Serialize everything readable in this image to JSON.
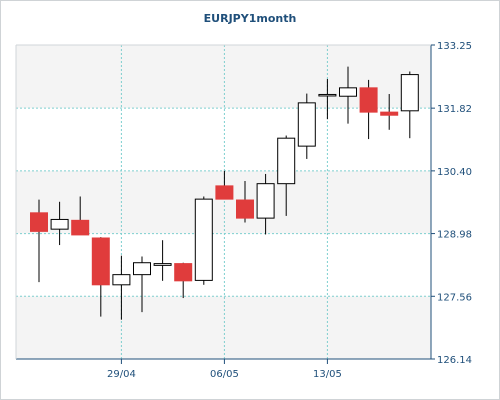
{
  "chart_data": {
    "type": "candlestick",
    "title": "EURJPY1month",
    "xlabel": "",
    "ylabel": "",
    "ylim": [
      126.14,
      133.25
    ],
    "y_ticks": [
      "126.14",
      "127.56",
      "128.98",
      "130.40",
      "131.82",
      "133.25"
    ],
    "x_ticks": [
      {
        "label": "29/04",
        "index": 4
      },
      {
        "label": "06/05",
        "index": 9
      },
      {
        "label": "13/05",
        "index": 14
      }
    ],
    "grid": true,
    "colors": {
      "up": "#ffffff",
      "down": "#e03c3c",
      "outline": "#000000",
      "grid": "#7ecfcf"
    },
    "series": [
      {
        "date": "23/04",
        "open": 129.45,
        "high": 129.75,
        "low": 127.88,
        "close": 129.03
      },
      {
        "date": "24/04",
        "open": 129.08,
        "high": 129.7,
        "low": 128.72,
        "close": 129.3
      },
      {
        "date": "25/04",
        "open": 129.28,
        "high": 129.82,
        "low": 128.98,
        "close": 128.95
      },
      {
        "date": "26/04",
        "open": 128.88,
        "high": 128.9,
        "low": 127.1,
        "close": 127.82
      },
      {
        "date": "29/04",
        "open": 127.82,
        "high": 128.48,
        "low": 127.03,
        "close": 128.05
      },
      {
        "date": "30/04",
        "open": 128.05,
        "high": 128.46,
        "low": 127.2,
        "close": 128.32
      },
      {
        "date": "01/05",
        "open": 128.26,
        "high": 128.83,
        "low": 127.91,
        "close": 128.3
      },
      {
        "date": "02/05",
        "open": 128.3,
        "high": 128.32,
        "low": 127.52,
        "close": 127.91
      },
      {
        "date": "03/05",
        "open": 127.92,
        "high": 129.82,
        "low": 127.82,
        "close": 129.76
      },
      {
        "date": "06/05",
        "open": 130.06,
        "high": 130.4,
        "low": 129.76,
        "close": 129.76
      },
      {
        "date": "07/05",
        "open": 129.74,
        "high": 130.17,
        "low": 129.23,
        "close": 129.33
      },
      {
        "date": "08/05",
        "open": 129.33,
        "high": 130.33,
        "low": 128.96,
        "close": 130.11
      },
      {
        "date": "09/05",
        "open": 130.11,
        "high": 131.2,
        "low": 129.38,
        "close": 131.14
      },
      {
        "date": "10/05",
        "open": 130.96,
        "high": 132.15,
        "low": 130.67,
        "close": 131.94
      },
      {
        "date": "13/05",
        "open": 132.13,
        "high": 132.48,
        "low": 131.57,
        "close": 132.13
      },
      {
        "date": "14/05",
        "open": 132.09,
        "high": 132.76,
        "low": 131.47,
        "close": 132.28
      },
      {
        "date": "15/05",
        "open": 132.28,
        "high": 132.46,
        "low": 131.12,
        "close": 131.73
      },
      {
        "date": "16/05",
        "open": 131.73,
        "high": 132.14,
        "low": 131.33,
        "close": 131.66
      },
      {
        "date": "17/05",
        "open": 131.76,
        "high": 132.65,
        "low": 131.14,
        "close": 132.58
      }
    ]
  }
}
